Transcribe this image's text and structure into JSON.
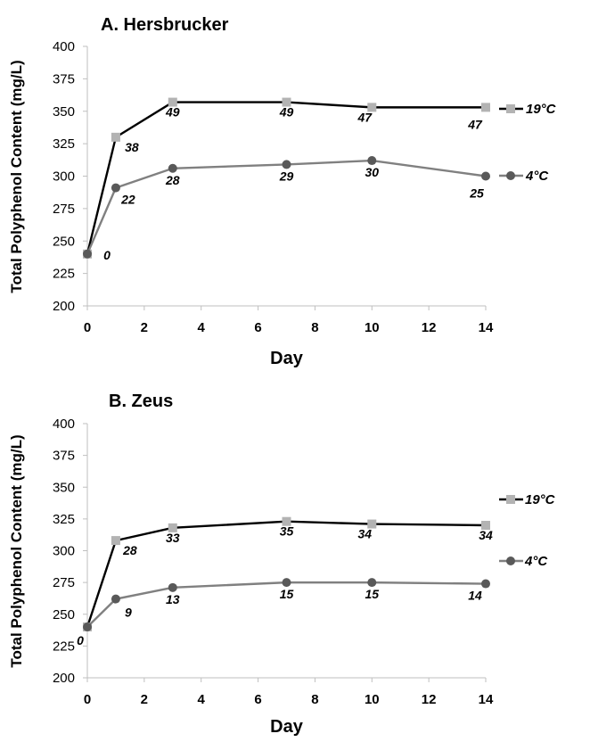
{
  "chart_data": [
    {
      "type": "line",
      "title": "A. Hersbrucker",
      "xlabel": "Day",
      "ylabel": "Total Polyphenol Content (mg/L)",
      "xlim": [
        0,
        14
      ],
      "ylim": [
        200,
        400
      ],
      "xticks": [
        0,
        2,
        4,
        6,
        8,
        10,
        12,
        14
      ],
      "yticks": [
        200,
        225,
        250,
        275,
        300,
        325,
        350,
        375,
        400
      ],
      "grid": false,
      "legend": "right",
      "x": [
        0,
        1,
        3,
        7,
        10,
        14
      ],
      "series": [
        {
          "name": "19°C",
          "color": "#000000",
          "marker_color": "#b3b3b3",
          "marker": "square",
          "values": [
            240,
            330,
            357,
            357,
            353,
            353
          ],
          "labels": [
            "",
            "38",
            "49",
            "49",
            "47",
            "47"
          ]
        },
        {
          "name": "4°C",
          "color": "#808080",
          "marker_color": "#595959",
          "marker": "circle",
          "values": [
            240,
            291,
            306,
            309,
            312,
            300
          ],
          "labels": [
            "0",
            "22",
            "28",
            "29",
            "30",
            "25"
          ]
        }
      ]
    },
    {
      "type": "line",
      "title": "B. Zeus",
      "xlabel": "Day",
      "ylabel": "Total Polyphenol Content (mg/L)",
      "xlim": [
        0,
        14
      ],
      "ylim": [
        200,
        400
      ],
      "xticks": [
        0,
        2,
        4,
        6,
        8,
        10,
        12,
        14
      ],
      "yticks": [
        200,
        225,
        250,
        275,
        300,
        325,
        350,
        375,
        400
      ],
      "grid": false,
      "legend": "right",
      "x": [
        0,
        1,
        3,
        7,
        10,
        14
      ],
      "series": [
        {
          "name": "19°C",
          "color": "#000000",
          "marker_color": "#b3b3b3",
          "marker": "square",
          "values": [
            240,
            308,
            318,
            323,
            321,
            320
          ],
          "labels": [
            "",
            "28",
            "33",
            "35",
            "34",
            "34"
          ]
        },
        {
          "name": "4°C",
          "color": "#808080",
          "marker_color": "#595959",
          "marker": "circle",
          "values": [
            240,
            262,
            271,
            275,
            275,
            274
          ],
          "labels": [
            "0",
            "9",
            "13",
            "15",
            "15",
            "14"
          ]
        }
      ]
    }
  ]
}
